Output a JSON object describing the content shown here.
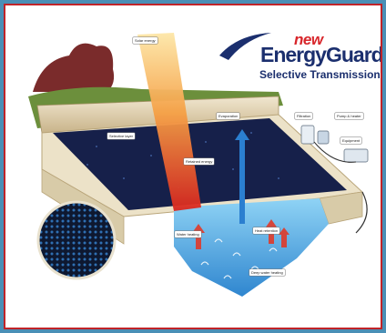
{
  "logo": {
    "word_new": "new",
    "word_main": "EnergyGuard",
    "tagline": "Selective Transmission"
  },
  "diagram": {
    "callouts": {
      "solar_energy": "Solar energy",
      "cover_surface": "Selective layer",
      "heat_retained": "Retained energy",
      "evaporation": "Evaporation",
      "water_heating": "Water heating",
      "pool_heat": "Heat retention",
      "deep_water": "Deep water heating",
      "equipment_1": "Filtration",
      "equipment_2": "Pump & heater",
      "equipment_3": "Equipment"
    }
  },
  "colors": {
    "border_outer": "#4a8fb6",
    "border_inner": "#c02328",
    "logo_blue": "#1b2f6e",
    "logo_red": "#d8262b",
    "cover": "#16204a",
    "water": "#4fb3e8",
    "solar_beam": "#e8452a"
  }
}
